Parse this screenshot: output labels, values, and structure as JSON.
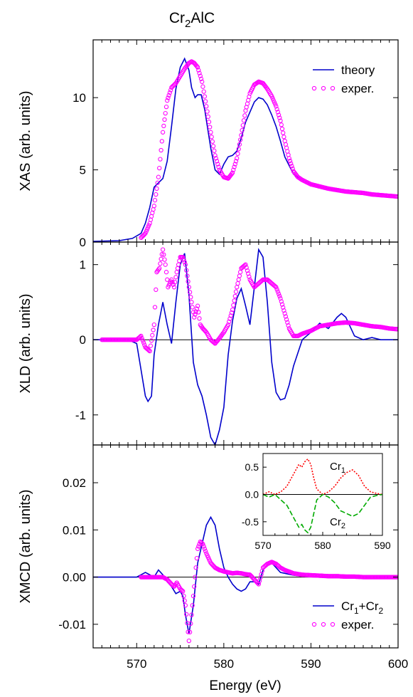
{
  "chart_data": {
    "type": "line",
    "title_main": "Cr",
    "title_sub": "2",
    "title_rest": "AlC",
    "xlabel": "Energy (eV)",
    "xlim": [
      565,
      600
    ],
    "xticks": [
      570,
      580,
      590,
      600
    ],
    "panels": [
      {
        "id": "xas",
        "ylabel": "XAS (arb. units)",
        "ylim": [
          0,
          14
        ],
        "yticks": [
          0,
          5,
          10
        ],
        "yticklabels": [
          "0",
          "5",
          "10"
        ],
        "legend": {
          "placement": "top-right",
          "entries": [
            "theory",
            "exper."
          ]
        },
        "series": [
          {
            "name": "theory",
            "style": "line",
            "color": "#0000cc",
            "x": [
              565,
              568,
              569.5,
              570.5,
              571,
              571.5,
              572,
              572.5,
              573,
              573.5,
              574,
              574.5,
              575,
              575.5,
              576,
              576.3,
              576.7,
              577,
              577.4,
              577.8,
              578.5,
              579,
              579.5,
              580,
              580.5,
              581,
              581.5,
              582,
              582.5,
              583,
              583.5,
              584,
              584.5,
              585,
              585.5,
              586,
              586.5,
              587,
              588,
              589,
              590,
              592,
              594,
              596,
              598,
              600
            ],
            "y": [
              0.05,
              0.1,
              0.25,
              0.6,
              1.3,
              2.4,
              3.8,
              4.1,
              4.4,
              5.6,
              8.0,
              10.6,
              12.1,
              12.7,
              11.9,
              10.7,
              10.0,
              10.2,
              10.2,
              9.2,
              6.5,
              5.0,
              4.7,
              5.4,
              5.9,
              6.0,
              6.3,
              7.2,
              8.3,
              9.0,
              9.7,
              10.0,
              9.9,
              9.5,
              8.8,
              8.0,
              7.0,
              5.9,
              4.7,
              4.3,
              4.0,
              3.7,
              3.6,
              3.5,
              3.3,
              3.25
            ]
          },
          {
            "name": "exper.",
            "style": "markers",
            "color": "#ff00ff",
            "x": [
              570.5,
              571,
              571.5,
              572,
              572.5,
              573,
              573.5,
              574,
              574.5,
              575,
              575.5,
              576,
              576.3,
              576.6,
              577,
              577.5,
              578,
              578.5,
              579,
              579.5,
              580,
              580.5,
              581,
              581.5,
              582,
              582.5,
              583,
              583.5,
              584,
              584.5,
              585,
              585.5,
              586,
              586.5,
              587,
              587.5,
              588,
              588.5,
              589,
              590,
              591,
              592,
              593,
              594,
              595,
              596,
              597,
              598,
              599,
              600
            ],
            "y": [
              0.3,
              0.6,
              1.3,
              2.5,
              4.5,
              7.6,
              9.8,
              10.7,
              11.0,
              11.5,
              12.0,
              12.4,
              12.5,
              12.4,
              12.1,
              11.1,
              9.4,
              7.6,
              6.0,
              5.0,
              4.5,
              4.4,
              4.8,
              5.8,
              7.4,
              9.1,
              10.3,
              10.9,
              11.1,
              11.0,
              10.6,
              10.1,
              9.4,
              8.4,
              7.0,
              5.8,
              4.9,
              4.5,
              4.3,
              4.0,
              3.85,
              3.7,
              3.6,
              3.5,
              3.45,
              3.4,
              3.3,
              3.25,
              3.2,
              3.15
            ]
          }
        ]
      },
      {
        "id": "xld",
        "ylabel": "XLD (arb. units)",
        "ylim": [
          -1.4,
          1.3
        ],
        "yticks": [
          -1,
          0,
          1
        ],
        "yticklabels": [
          "-1",
          "0",
          "1"
        ],
        "zero_line": true,
        "series": [
          {
            "name": "theory",
            "style": "line",
            "color": "#0000cc",
            "x": [
              565,
              569,
              570,
              570.5,
              571,
              571.3,
              571.7,
              572,
              572.5,
              573,
              573.5,
              574,
              574.5,
              575,
              575.5,
              576,
              576.5,
              577,
              577.5,
              578,
              578.5,
              579,
              579.5,
              580,
              580.5,
              581,
              581.5,
              582,
              582.5,
              583,
              583.5,
              584,
              584.5,
              585,
              585.5,
              586,
              586.5,
              587,
              587.5,
              588,
              589,
              590,
              591,
              592,
              593,
              593.5,
              594,
              595,
              596,
              597,
              598,
              600
            ],
            "y": [
              0,
              0,
              -0.05,
              -0.4,
              -0.75,
              -0.82,
              -0.75,
              -0.2,
              0.2,
              0.5,
              0.2,
              -0.05,
              0.5,
              1.0,
              1.15,
              0.6,
              -0.3,
              -0.6,
              -0.75,
              -1.0,
              -1.3,
              -1.4,
              -1.2,
              -0.9,
              -0.2,
              0.25,
              0.55,
              0.68,
              0.45,
              0.2,
              0.7,
              1.2,
              1.1,
              0.5,
              -0.3,
              -0.7,
              -0.8,
              -0.78,
              -0.6,
              -0.35,
              0.0,
              0.1,
              0.22,
              0.15,
              0.3,
              0.35,
              0.3,
              0.05,
              0.0,
              0.03,
              0.0,
              0.0
            ]
          },
          {
            "name": "exper.",
            "style": "markers",
            "color": "#ff00ff",
            "x": [
              566,
              567,
              568,
              569,
              570,
              570.5,
              571,
              571.5,
              572,
              572.3,
              572.6,
              573,
              573.3,
              573.6,
              574,
              574.3,
              574.6,
              575,
              575.3,
              575.6,
              576,
              576.3,
              576.6,
              577,
              577.3,
              577.6,
              578,
              578.5,
              579,
              579.5,
              580,
              580.5,
              581,
              581.5,
              582,
              582.5,
              583,
              583.5,
              584,
              584.5,
              585,
              585.5,
              586,
              586.5,
              587,
              587.5,
              588,
              588.5,
              589,
              590,
              591,
              592,
              593,
              594,
              595,
              596,
              597,
              598,
              599,
              600
            ],
            "y": [
              0,
              0,
              0,
              0,
              0,
              0.05,
              -0.1,
              -0.15,
              0.2,
              0.9,
              0.95,
              1.2,
              1.0,
              0.7,
              0.8,
              0.7,
              0.9,
              1.1,
              1.1,
              1.0,
              0.7,
              0.5,
              0.3,
              0.45,
              0.2,
              0.15,
              0.1,
              0.0,
              -0.05,
              0.02,
              0.1,
              0.2,
              0.4,
              0.7,
              0.95,
              1.0,
              0.8,
              0.7,
              0.75,
              0.8,
              0.8,
              0.75,
              0.7,
              0.55,
              0.35,
              0.15,
              0.05,
              0.05,
              0.08,
              0.12,
              0.18,
              0.2,
              0.22,
              0.23,
              0.22,
              0.2,
              0.18,
              0.17,
              0.15,
              0.14
            ]
          }
        ]
      },
      {
        "id": "xmcd",
        "ylabel": "XMCD (arb. units)",
        "ylim": [
          -0.015,
          0.028
        ],
        "yticks": [
          -0.01,
          0.0,
          0.01,
          0.02
        ],
        "yticklabels": [
          "-0.01",
          "0.00",
          "0.01",
          "0.02"
        ],
        "zero_line": true,
        "legend": {
          "placement": "bottom-right",
          "entries": [
            "Cr1+Cr2",
            "exper."
          ]
        },
        "series": [
          {
            "name": "Cr1+Cr2",
            "style": "line",
            "color": "#0000cc",
            "x": [
              565,
              570,
              570.5,
              571,
              571.5,
              572,
              572.5,
              573,
              573.5,
              574,
              574.5,
              575,
              575.3,
              575.6,
              576,
              576.5,
              577,
              577.5,
              578,
              578.5,
              579,
              579.5,
              580,
              580.5,
              581,
              581.5,
              582,
              582.5,
              583,
              583.5,
              584,
              584.5,
              585,
              585.5,
              586,
              586.5,
              587,
              588,
              589,
              590,
              592,
              594,
              596,
              598,
              600
            ],
            "y": [
              0,
              0,
              0.0005,
              0.001,
              0.0005,
              0.0,
              0.0015,
              0.0005,
              -0.001,
              -0.002,
              -0.0035,
              -0.003,
              -0.004,
              -0.008,
              -0.012,
              -0.006,
              0.003,
              0.007,
              0.011,
              0.0127,
              0.011,
              0.006,
              0.002,
              0.0,
              -0.0015,
              -0.0025,
              -0.003,
              -0.0025,
              -0.001,
              -0.001,
              -0.0015,
              0.0015,
              0.0025,
              0.003,
              0.002,
              0.001,
              0.0008,
              0.0004,
              0.0002,
              0.0001,
              0.0,
              0.0,
              0.0,
              0.0,
              0.0
            ]
          },
          {
            "name": "exper.",
            "style": "markers",
            "color": "#ff00ff",
            "x": [
              570.5,
              571,
              571.5,
              572,
              572.5,
              573,
              573.5,
              574,
              574.3,
              574.6,
              575,
              575.3,
              575.6,
              576,
              576.3,
              576.6,
              577,
              577.3,
              577.6,
              578,
              578.5,
              579,
              579.5,
              580,
              580.5,
              581,
              581.5,
              582,
              582.5,
              583,
              583.5,
              584,
              584.5,
              585,
              585.5,
              586,
              586.5,
              587,
              588,
              589,
              590,
              591,
              592,
              593,
              594,
              595,
              596,
              597,
              598,
              599,
              600
            ],
            "y": [
              0.0,
              0.0,
              0.0,
              0.0,
              0.0,
              0.0,
              -0.0005,
              -0.0015,
              -0.002,
              -0.0012,
              -0.0025,
              -0.003,
              -0.006,
              -0.0135,
              -0.008,
              -0.002,
              0.006,
              0.0075,
              0.007,
              0.005,
              0.003,
              0.002,
              0.0015,
              0.0012,
              0.001,
              0.0008,
              0.0009,
              0.0008,
              0.0006,
              0.0005,
              -0.0005,
              -0.0015,
              0.002,
              0.0028,
              0.0032,
              0.0028,
              0.002,
              0.0015,
              0.0008,
              0.0005,
              0.0004,
              0.0003,
              0.0002,
              0.0002,
              0.0001,
              0.0001,
              0.0,
              0.0,
              0.0,
              0.0,
              0.0
            ]
          }
        ]
      }
    ],
    "inset": {
      "xlim": [
        570,
        590
      ],
      "ylim": [
        -0.75,
        0.75
      ],
      "xticks": [
        570,
        580,
        590
      ],
      "yticks": [
        -0.5,
        0.0,
        0.5
      ],
      "yticklabels": [
        "-0.5",
        "0.0",
        "0.5"
      ],
      "label1": {
        "base": "Cr",
        "sub": "1"
      },
      "label2": {
        "base": "Cr",
        "sub": "2"
      },
      "series": [
        {
          "name": "Cr1",
          "style": "dotted",
          "color": "#ff0000",
          "x": [
            570,
            571,
            572,
            573,
            574,
            575,
            576,
            576.5,
            577,
            577.5,
            578,
            578.5,
            579,
            580,
            581,
            582,
            583,
            584,
            585,
            586,
            587,
            588,
            589,
            590
          ],
          "y": [
            0.0,
            0.05,
            0.0,
            0.05,
            0.15,
            0.35,
            0.55,
            0.5,
            0.6,
            0.65,
            0.55,
            0.3,
            0.1,
            0.0,
            0.05,
            0.15,
            0.3,
            0.4,
            0.45,
            0.35,
            0.15,
            0.05,
            0.02,
            0.0
          ]
        },
        {
          "name": "Cr2",
          "style": "dashed",
          "color": "#00aa00",
          "x": [
            570,
            571,
            572,
            573,
            574,
            575,
            576,
            576.5,
            577,
            577.5,
            578,
            578.5,
            579,
            580,
            581,
            582,
            583,
            584,
            585,
            586,
            587,
            588,
            589,
            590
          ],
          "y": [
            0.0,
            -0.05,
            0.0,
            -0.1,
            -0.2,
            -0.4,
            -0.6,
            -0.55,
            -0.65,
            -0.7,
            -0.6,
            -0.35,
            -0.1,
            0.0,
            -0.05,
            -0.15,
            -0.3,
            -0.35,
            -0.4,
            -0.35,
            -0.2,
            -0.05,
            -0.02,
            0.0
          ]
        }
      ]
    }
  }
}
